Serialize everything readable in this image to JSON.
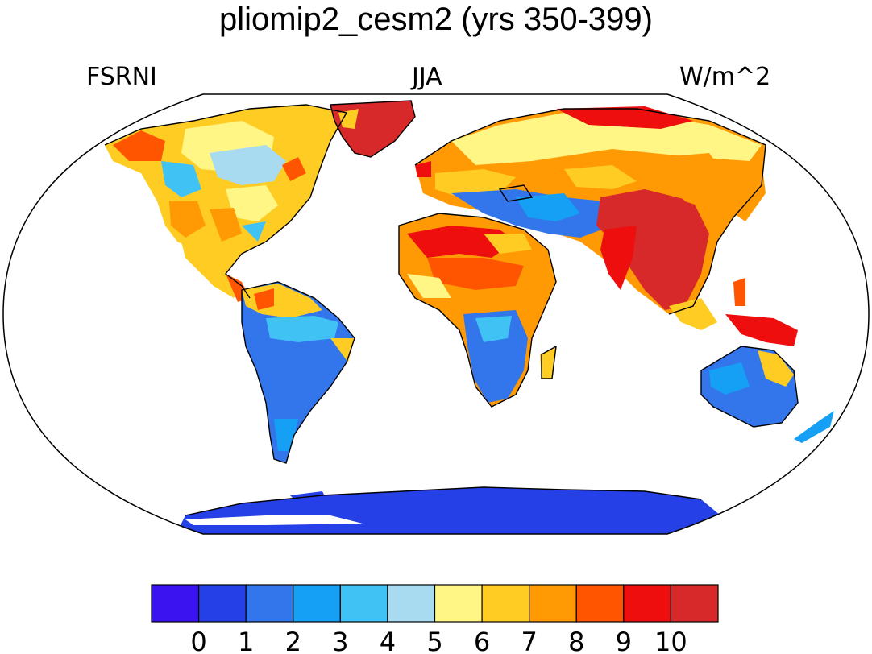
{
  "title": "pliomip2_cesm2 (yrs 350-399)",
  "labels": {
    "left": "FSRNI",
    "center": "JJA",
    "right": "W/m^2"
  },
  "colorbar": {
    "colors": [
      "#3b12f0",
      "#2440e6",
      "#3375ea",
      "#15a0f5",
      "#40c2f5",
      "#a8daf0",
      "#fff685",
      "#ffcc24",
      "#ff9a05",
      "#ff5500",
      "#ee0e0e",
      "#d7282a"
    ],
    "tick_labels": [
      "0",
      "1",
      "2",
      "3",
      "4",
      "5",
      "6",
      "7",
      "8",
      "9",
      "10"
    ]
  }
}
